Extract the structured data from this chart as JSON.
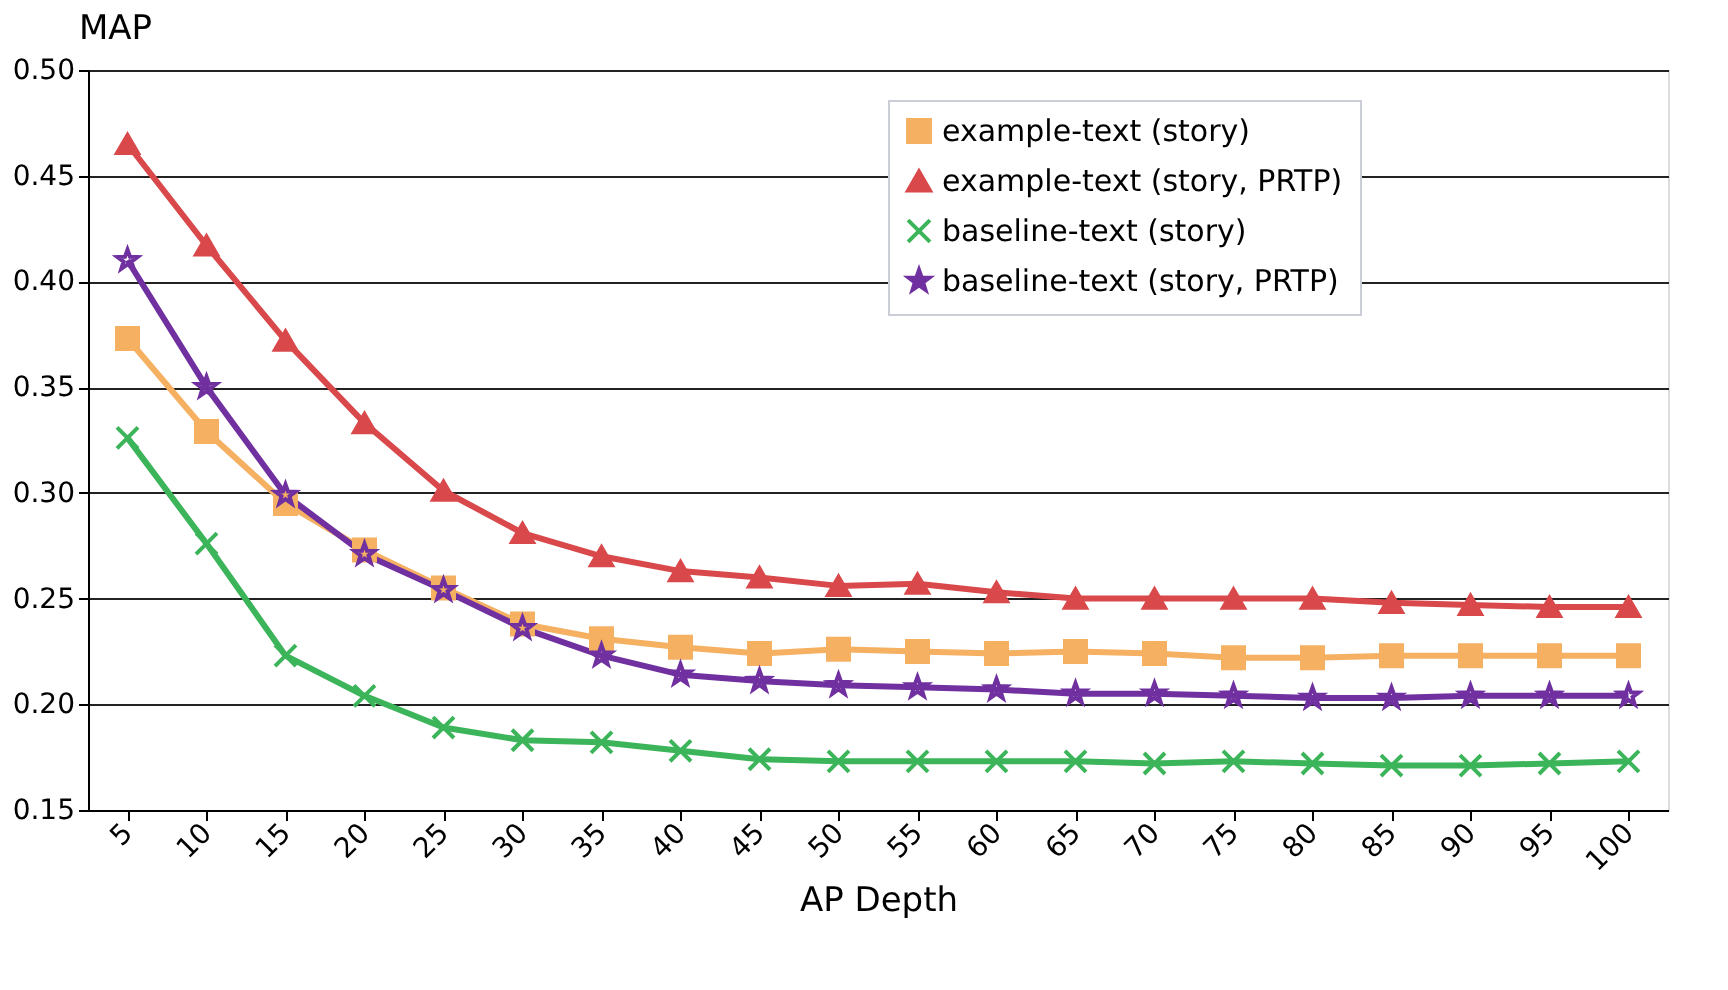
{
  "chart_data": {
    "type": "line",
    "xlabel": "AP Depth",
    "ylabel": "MAP",
    "categories": [
      "5",
      "10",
      "15",
      "20",
      "25",
      "30",
      "35",
      "40",
      "45",
      "50",
      "55",
      "60",
      "65",
      "70",
      "75",
      "80",
      "85",
      "90",
      "95",
      "100"
    ],
    "ylim": [
      0.15,
      0.5
    ],
    "yticks": [
      {
        "value": 0.15,
        "label": "0.15"
      },
      {
        "value": 0.2,
        "label": "0.20"
      },
      {
        "value": 0.25,
        "label": "0.25"
      },
      {
        "value": 0.3,
        "label": "0.30"
      },
      {
        "value": 0.35,
        "label": "0.35"
      },
      {
        "value": 0.4,
        "label": "0.40"
      },
      {
        "value": 0.45,
        "label": "0.45"
      },
      {
        "value": 0.5,
        "label": "0.50"
      }
    ],
    "grid": "y",
    "legend": "top right",
    "line_style": "solid",
    "series": [
      {
        "name": "example-text (story)",
        "color": "#f5b062",
        "marker": "square",
        "values": [
          0.373,
          0.329,
          0.295,
          0.273,
          0.255,
          0.238,
          0.231,
          0.227,
          0.224,
          0.226,
          0.225,
          0.224,
          0.225,
          0.224,
          0.222,
          0.222,
          0.223,
          0.223,
          0.223,
          0.223
        ]
      },
      {
        "name": "example-text (story, PRTP)",
        "color": "#d9484a",
        "marker": "triangle",
        "values": [
          0.465,
          0.417,
          0.372,
          0.333,
          0.301,
          0.281,
          0.27,
          0.263,
          0.26,
          0.256,
          0.257,
          0.253,
          0.25,
          0.25,
          0.25,
          0.25,
          0.248,
          0.247,
          0.246,
          0.246
        ]
      },
      {
        "name": "baseline-text (story)",
        "color": "#3cb55a",
        "marker": "cross",
        "values": [
          0.326,
          0.276,
          0.223,
          0.204,
          0.189,
          0.183,
          0.182,
          0.178,
          0.174,
          0.173,
          0.173,
          0.173,
          0.173,
          0.172,
          0.173,
          0.172,
          0.171,
          0.171,
          0.172,
          0.173
        ]
      },
      {
        "name": "baseline-text (story, PRTP)",
        "color": "#7030a0",
        "marker": "star",
        "values": [
          0.41,
          0.35,
          0.299,
          0.271,
          0.254,
          0.236,
          0.223,
          0.214,
          0.211,
          0.209,
          0.208,
          0.207,
          0.205,
          0.205,
          0.204,
          0.203,
          0.203,
          0.204,
          0.204,
          0.204
        ]
      }
    ]
  }
}
